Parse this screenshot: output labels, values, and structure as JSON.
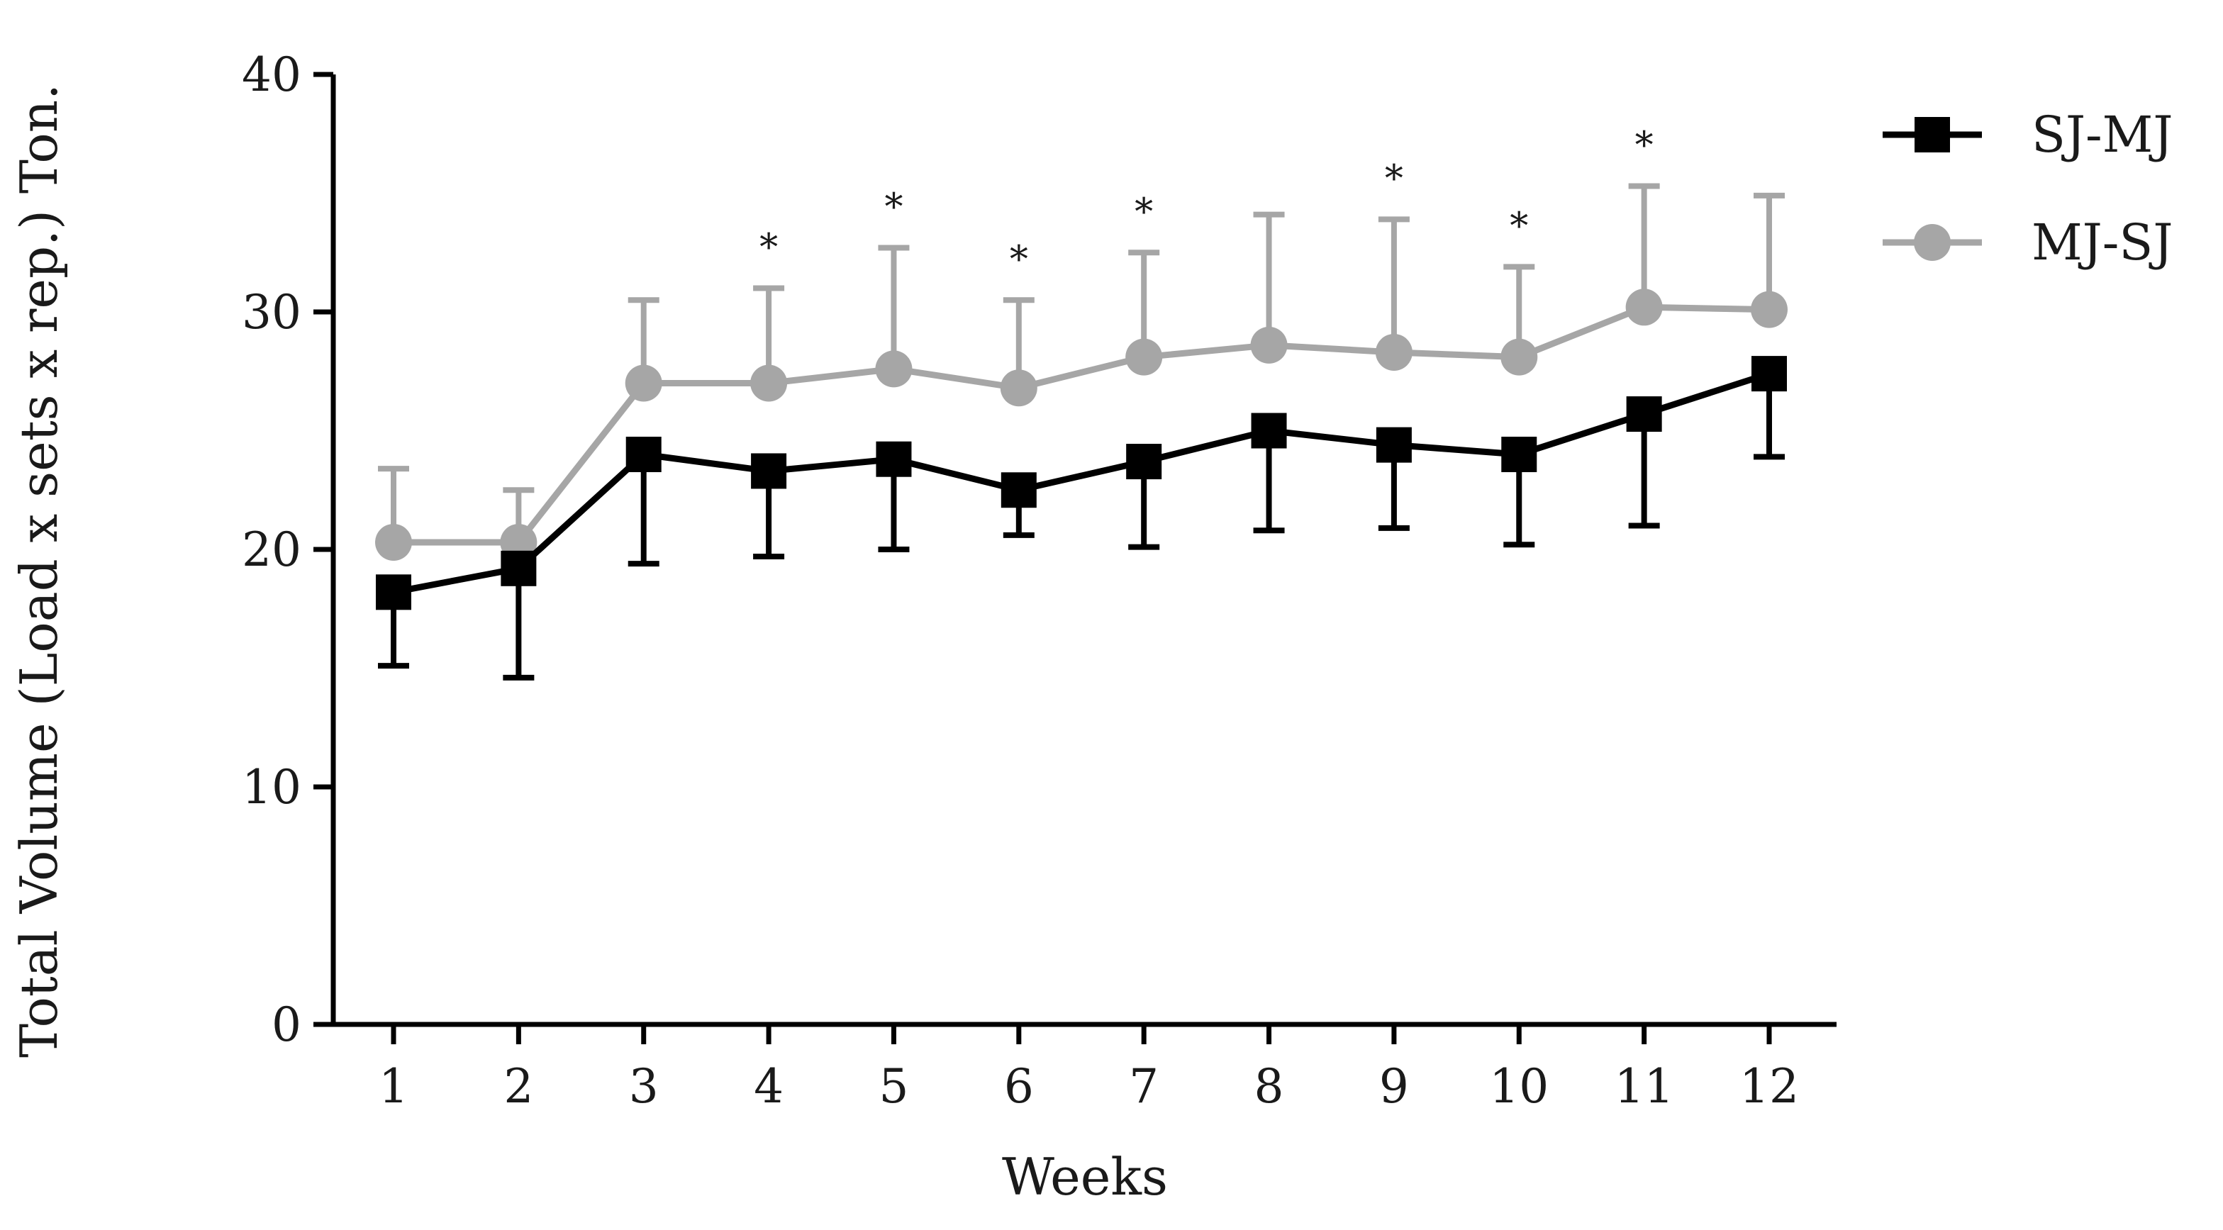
{
  "chart_data": {
    "type": "line",
    "title": "",
    "xlabel": "Weeks",
    "ylabel": "Total Volume (Load x sets x rep.) Ton.",
    "ylim": [
      0,
      40
    ],
    "yticks": [
      0,
      10,
      20,
      30,
      40
    ],
    "categories": [
      "1",
      "2",
      "3",
      "4",
      "5",
      "6",
      "7",
      "8",
      "9",
      "10",
      "11",
      "12"
    ],
    "legend_position": "top-right",
    "series": [
      {
        "name": "SJ-MJ",
        "color": "#000000",
        "marker": "square",
        "error_direction": "down",
        "values": [
          18.2,
          19.2,
          24.0,
          23.3,
          23.8,
          22.5,
          23.7,
          25.0,
          24.4,
          24.0,
          25.7,
          27.4
        ],
        "errors": [
          3.1,
          4.6,
          4.6,
          3.6,
          3.8,
          1.9,
          3.6,
          4.2,
          3.5,
          3.8,
          4.7,
          3.5
        ]
      },
      {
        "name": "MJ-SJ",
        "color": "#a6a6a6",
        "marker": "circle",
        "error_direction": "up",
        "values": [
          20.3,
          20.3,
          27.0,
          27.0,
          27.6,
          26.8,
          28.1,
          28.6,
          28.3,
          28.1,
          30.2,
          30.1
        ],
        "errors": [
          3.1,
          2.2,
          3.5,
          4.0,
          5.1,
          3.7,
          4.4,
          5.5,
          5.6,
          3.8,
          5.1,
          4.8
        ]
      }
    ],
    "significance": {
      "symbol": "*",
      "weeks": [
        "4",
        "5",
        "6",
        "7",
        "9",
        "10",
        "11"
      ]
    }
  }
}
